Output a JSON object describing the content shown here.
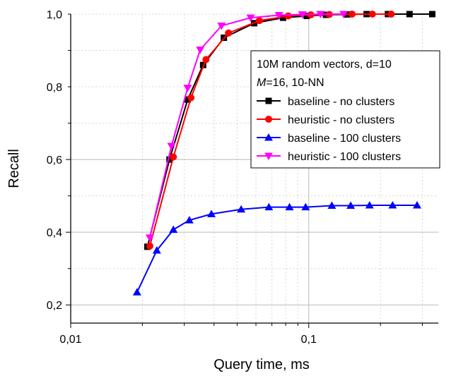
{
  "chart_data": {
    "type": "line",
    "xscale": "log",
    "xlim": [
      0.01,
      0.35
    ],
    "ylim": [
      0.15,
      1.0
    ],
    "xlabel": "Query time, ms",
    "ylabel": "Recall",
    "x_ticks": [
      0.01,
      0.1
    ],
    "x_tick_labels": [
      "0,01",
      "0,1"
    ],
    "y_ticks": [
      0.2,
      0.4,
      0.6,
      0.8,
      1.0
    ],
    "y_tick_labels": [
      "0,2",
      "0,4",
      "0,6",
      "0,8",
      "1,0"
    ],
    "grid": true,
    "legend_title_lines": [
      "10M random vectors, d=10",
      "M=16, 10-NN"
    ],
    "legend_position": "right",
    "series": [
      {
        "name": "baseline - no clusters",
        "color": "#000000",
        "marker": "square",
        "x": [
          0.021,
          0.026,
          0.031,
          0.036,
          0.044,
          0.059,
          0.078,
          0.098,
          0.118,
          0.145,
          0.175,
          0.215,
          0.265,
          0.33
        ],
        "y": [
          0.36,
          0.6,
          0.765,
          0.86,
          0.935,
          0.975,
          0.99,
          0.995,
          0.998,
          0.999,
          1.0,
          1.0,
          1.0,
          1.0
        ]
      },
      {
        "name": "heuristic - no clusters",
        "color": "#ff0000",
        "marker": "circle",
        "x": [
          0.0215,
          0.027,
          0.032,
          0.037,
          0.046,
          0.062,
          0.082,
          0.102,
          0.122,
          0.152,
          0.185,
          0.222
        ],
        "y": [
          0.362,
          0.607,
          0.77,
          0.875,
          0.948,
          0.982,
          0.995,
          0.998,
          0.999,
          1.0,
          1.0,
          1.0
        ]
      },
      {
        "name": "baseline - 100 clusters",
        "color": "#0000ff",
        "marker": "triangle-up",
        "x": [
          0.019,
          0.023,
          0.027,
          0.0315,
          0.039,
          0.052,
          0.068,
          0.083,
          0.097,
          0.125,
          0.15,
          0.18,
          0.225,
          0.285
        ],
        "y": [
          0.235,
          0.35,
          0.407,
          0.433,
          0.45,
          0.463,
          0.469,
          0.469,
          0.469,
          0.473,
          0.473,
          0.474,
          0.474,
          0.474
        ]
      },
      {
        "name": "heuristic - 100 clusters",
        "color": "#ff00ff",
        "marker": "triangle-down",
        "x": [
          0.0215,
          0.0265,
          0.031,
          0.035,
          0.043,
          0.057,
          0.075,
          0.094,
          0.112,
          0.14
        ],
        "y": [
          0.385,
          0.637,
          0.797,
          0.902,
          0.968,
          0.99,
          0.997,
          0.999,
          1.0,
          1.0
        ]
      }
    ]
  }
}
